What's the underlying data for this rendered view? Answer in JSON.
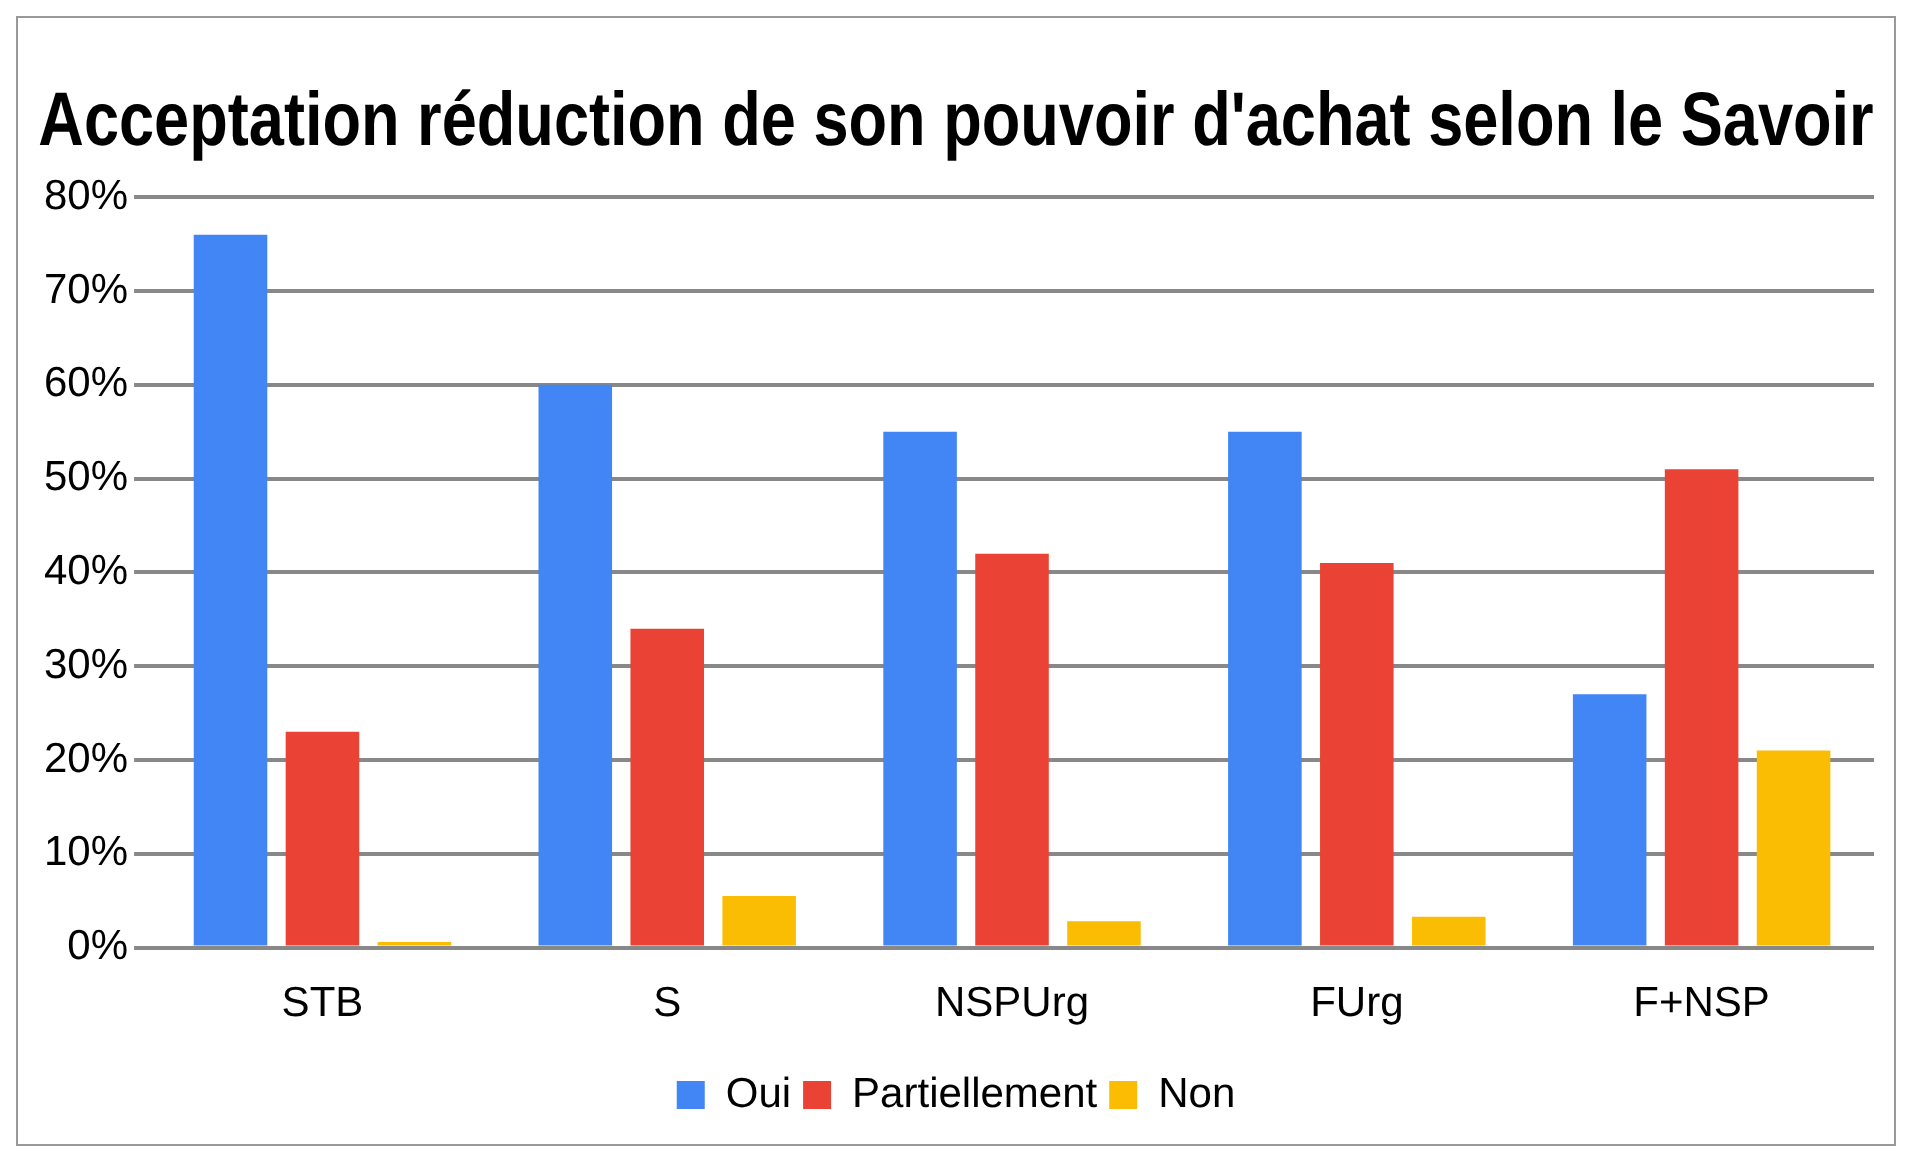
{
  "chart_data": {
    "type": "bar",
    "title": "Acceptation réduction de son pouvoir d'achat selon le Savoir",
    "categories": [
      "STB",
      "S",
      "NSPUrg",
      "FUrg",
      "F+NSP"
    ],
    "series": [
      {
        "name": "Oui",
        "color": "#4285f4",
        "values": [
          76,
          60,
          55,
          55,
          27
        ]
      },
      {
        "name": "Partiellement",
        "color": "#ea4335",
        "values": [
          23,
          34,
          42,
          41,
          51
        ]
      },
      {
        "name": "Non",
        "color": "#fbbc04",
        "values": [
          0.6,
          5.5,
          2.8,
          3.3,
          21
        ]
      }
    ],
    "ylim": [
      0,
      80
    ],
    "yticks": [
      {
        "value": 0,
        "label": "0%"
      },
      {
        "value": 10,
        "label": "10%"
      },
      {
        "value": 20,
        "label": "20%"
      },
      {
        "value": 30,
        "label": "30%"
      },
      {
        "value": 40,
        "label": "40%"
      },
      {
        "value": 50,
        "label": "50%"
      },
      {
        "value": 60,
        "label": "60%"
      },
      {
        "value": 70,
        "label": "70%"
      },
      {
        "value": 80,
        "label": "80%"
      }
    ],
    "grid": "y",
    "legend": "bottom"
  }
}
